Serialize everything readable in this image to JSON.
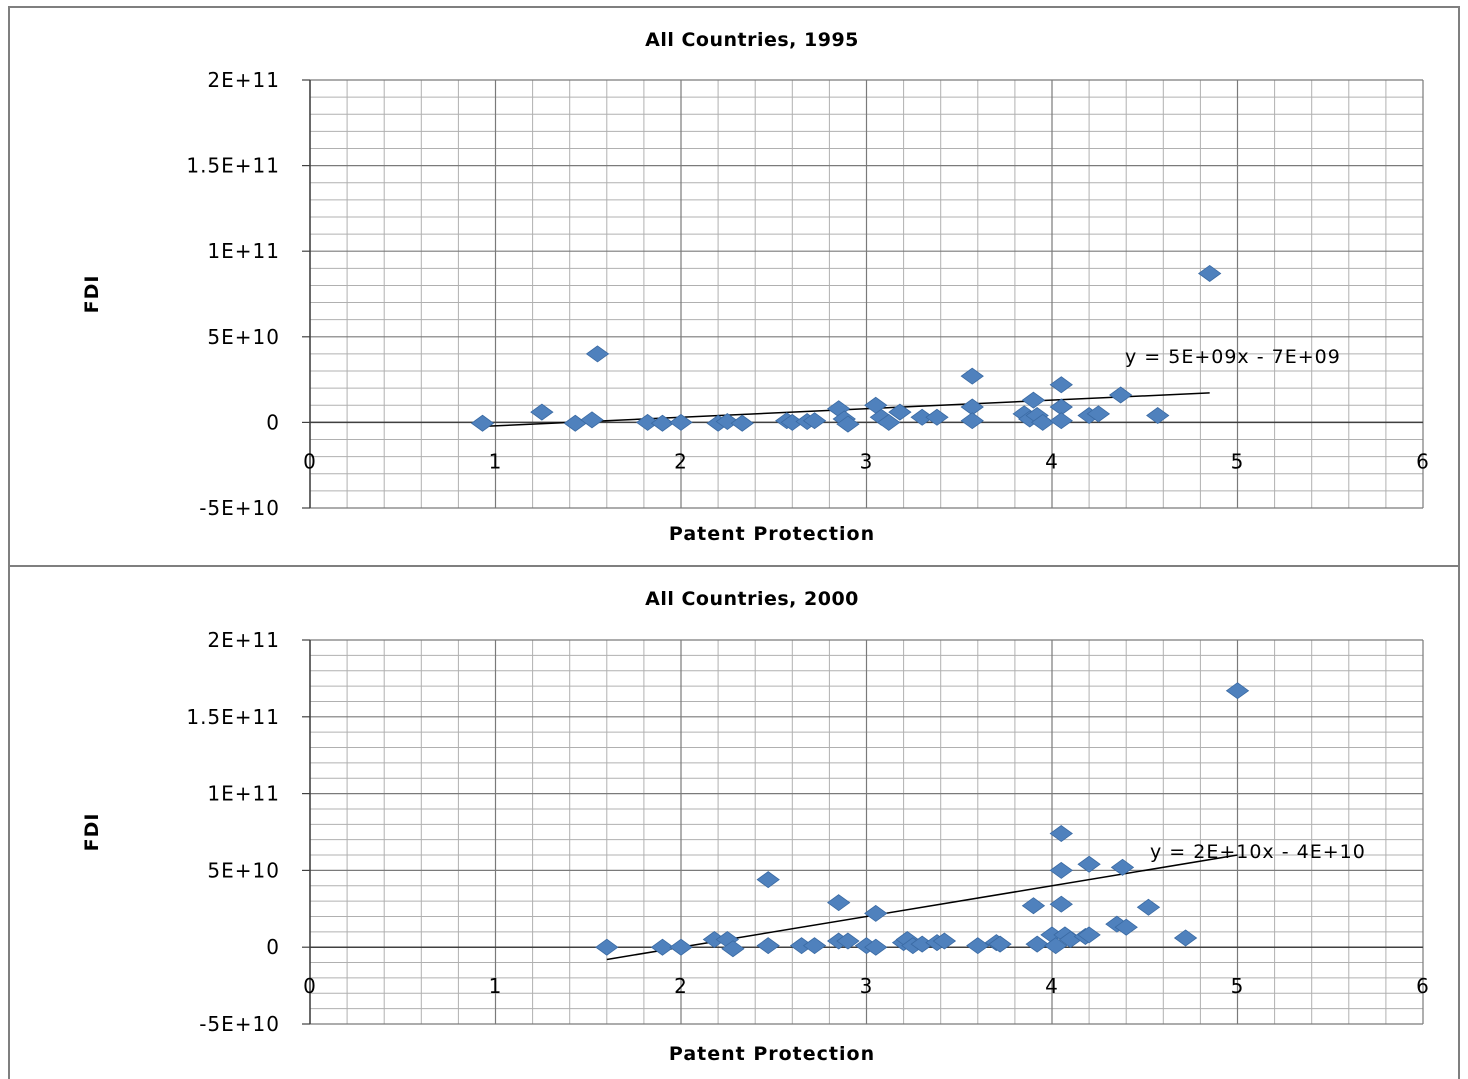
{
  "chart_data": [
    {
      "type": "scatter",
      "title": "All Countries, 1995",
      "xlabel": "Patent Protection",
      "ylabel": "FDI",
      "xlim": [
        0,
        6
      ],
      "ylim": [
        -50000000000,
        200000000000
      ],
      "x_ticks": [
        "0",
        "1",
        "2",
        "3",
        "4",
        "5",
        "6"
      ],
      "y_ticks": [
        "2E+11",
        "1.5E+11",
        "1E+11",
        "5E+10",
        "0",
        "-5E+10"
      ],
      "grid": true,
      "marker_color": "#4f81bd",
      "trendline": {
        "equation": "y = 5E+09x - 7E+09",
        "slope": 5000000000,
        "intercept": -7000000000,
        "x_range": [
          0.93,
          4.85
        ]
      },
      "points": [
        [
          0.93,
          -500000000
        ],
        [
          1.25,
          6000000000
        ],
        [
          1.43,
          -500000000
        ],
        [
          1.52,
          1500000000
        ],
        [
          1.55,
          40000000000
        ],
        [
          1.82,
          0
        ],
        [
          1.9,
          -500000000
        ],
        [
          2.0,
          0
        ],
        [
          2.2,
          -500000000
        ],
        [
          2.25,
          500000000
        ],
        [
          2.33,
          -500000000
        ],
        [
          2.57,
          1000000000
        ],
        [
          2.6,
          0
        ],
        [
          2.68,
          500000000
        ],
        [
          2.72,
          1000000000
        ],
        [
          2.85,
          8000000000
        ],
        [
          2.88,
          2000000000
        ],
        [
          2.9,
          -1000000000
        ],
        [
          3.05,
          10000000000
        ],
        [
          3.08,
          3000000000
        ],
        [
          3.12,
          0
        ],
        [
          3.18,
          6000000000
        ],
        [
          3.3,
          3000000000
        ],
        [
          3.38,
          3000000000
        ],
        [
          3.57,
          27000000000
        ],
        [
          3.57,
          9000000000
        ],
        [
          3.57,
          1000000000
        ],
        [
          3.85,
          5000000000
        ],
        [
          3.88,
          2000000000
        ],
        [
          3.9,
          13000000000
        ],
        [
          3.92,
          4000000000
        ],
        [
          3.95,
          0
        ],
        [
          4.05,
          22000000000
        ],
        [
          4.05,
          9000000000
        ],
        [
          4.05,
          1000000000
        ],
        [
          4.2,
          4000000000
        ],
        [
          4.25,
          5000000000
        ],
        [
          4.37,
          16000000000
        ],
        [
          4.57,
          4000000000
        ],
        [
          4.85,
          87000000000
        ]
      ]
    },
    {
      "type": "scatter",
      "title": "All Countries, 2000",
      "xlabel": "Patent Protection",
      "ylabel": "FDI",
      "xlim": [
        0,
        6
      ],
      "ylim": [
        -50000000000,
        200000000000
      ],
      "x_ticks": [
        "0",
        "1",
        "2",
        "3",
        "4",
        "5",
        "6"
      ],
      "y_ticks": [
        "2E+11",
        "1.5E+11",
        "1E+11",
        "5E+10",
        "0",
        "-5E+10"
      ],
      "grid": true,
      "marker_color": "#4f81bd",
      "trendline": {
        "equation": "y = 2E+10x - 4E+10",
        "slope": 20000000000,
        "intercept": -40000000000,
        "x_range": [
          1.6,
          5.0
        ]
      },
      "points": [
        [
          1.6,
          0
        ],
        [
          1.9,
          0
        ],
        [
          2.0,
          0
        ],
        [
          2.18,
          5000000000
        ],
        [
          2.25,
          5000000000
        ],
        [
          2.28,
          -1000000000
        ],
        [
          2.47,
          44000000000
        ],
        [
          2.47,
          1000000000
        ],
        [
          2.65,
          1000000000
        ],
        [
          2.72,
          1000000000
        ],
        [
          2.85,
          29000000000
        ],
        [
          2.85,
          4000000000
        ],
        [
          2.9,
          4000000000
        ],
        [
          3.0,
          1000000000
        ],
        [
          3.05,
          22000000000
        ],
        [
          3.05,
          0
        ],
        [
          3.2,
          3000000000
        ],
        [
          3.22,
          5000000000
        ],
        [
          3.25,
          1000000000
        ],
        [
          3.3,
          2000000000
        ],
        [
          3.38,
          3000000000
        ],
        [
          3.42,
          4000000000
        ],
        [
          3.6,
          1000000000
        ],
        [
          3.7,
          3000000000
        ],
        [
          3.72,
          2000000000
        ],
        [
          3.9,
          27000000000
        ],
        [
          3.92,
          2000000000
        ],
        [
          4.0,
          8000000000
        ],
        [
          4.02,
          1000000000
        ],
        [
          4.05,
          74000000000
        ],
        [
          4.05,
          50000000000
        ],
        [
          4.05,
          28000000000
        ],
        [
          4.07,
          8000000000
        ],
        [
          4.1,
          5000000000
        ],
        [
          4.18,
          7000000000
        ],
        [
          4.2,
          54000000000
        ],
        [
          4.2,
          8000000000
        ],
        [
          4.35,
          15000000000
        ],
        [
          4.38,
          52000000000
        ],
        [
          4.4,
          13000000000
        ],
        [
          4.52,
          26000000000
        ],
        [
          4.72,
          6000000000
        ],
        [
          5.0,
          167000000000
        ]
      ]
    }
  ]
}
